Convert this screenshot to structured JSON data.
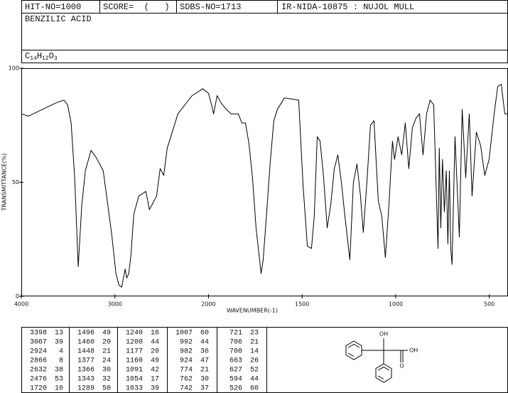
{
  "header": {
    "hit_no": "HIT-NO=1000",
    "score": "SCORE=  (   )",
    "sdbs_no": "SDBS-NO=1713",
    "method": "IR-NIDA-10875 : NUJOL MULL",
    "compound": "BENZILIC ACID",
    "formula": [
      "C",
      "14",
      "H",
      "12",
      "O",
      "3"
    ]
  },
  "chart_data": {
    "type": "line",
    "x_label": "WAVENUMBER(-1)",
    "y_label": "TRANSMITTANCE(%)",
    "color": "#000000",
    "xlim": [
      4000,
      400
    ],
    "x_break": 2000,
    "xticks": [
      4000,
      3000,
      2000,
      1500,
      1000,
      500
    ],
    "ylim": [
      0,
      100
    ],
    "yticks": [
      0,
      50,
      100
    ],
    "x": [
      4000,
      3924,
      3772,
      3620,
      3544,
      3506,
      3468,
      3430,
      3392,
      3354,
      3316,
      3255,
      3202,
      3125,
      3072,
      3034,
      2989,
      2958,
      2928,
      2890,
      2874,
      2852,
      2829,
      2798,
      2745,
      2669,
      2631,
      2555,
      2517,
      2479,
      2441,
      2327,
      2175,
      2061,
      2000,
      1981,
      1973,
      1954,
      1935,
      1905,
      1879,
      1841,
      1822,
      1803,
      1784,
      1765,
      1746,
      1719,
      1708,
      1689,
      1670,
      1651,
      1632,
      1594,
      1518,
      1495,
      1472,
      1450,
      1435,
      1419,
      1404,
      1385,
      1366,
      1347,
      1328,
      1309,
      1290,
      1271,
      1245,
      1226,
      1207,
      1188,
      1173,
      1154,
      1135,
      1116,
      1093,
      1074,
      1055,
      1036,
      1017,
      1006,
      987,
      968,
      949,
      930,
      911,
      892,
      873,
      854,
      835,
      816,
      797,
      774,
      767,
      759,
      750,
      740,
      730,
      721,
      713,
      706,
      699,
      683,
      660,
      645,
      626,
      607,
      592,
      569,
      546,
      524,
      501,
      474,
      455,
      436,
      417,
      400
    ],
    "values": [
      80,
      79,
      82,
      85,
      86,
      84,
      76,
      52,
      13,
      40,
      55,
      64,
      61,
      55,
      39,
      27,
      10,
      5,
      4,
      12,
      8,
      10,
      18,
      36,
      44,
      46,
      38,
      44,
      56,
      53,
      65,
      80,
      88,
      91,
      89,
      83,
      80,
      88,
      85,
      82,
      80,
      80,
      76,
      76,
      67,
      52,
      30,
      10,
      16,
      37,
      59,
      77,
      82,
      87,
      86,
      49,
      22,
      21,
      35,
      70,
      68,
      52,
      30,
      40,
      56,
      62,
      50,
      35,
      16,
      50,
      58,
      44,
      28,
      50,
      75,
      77,
      42,
      35,
      17,
      40,
      68,
      60,
      70,
      62,
      76,
      56,
      74,
      78,
      80,
      62,
      80,
      86,
      84,
      21,
      65,
      30,
      60,
      37,
      55,
      23,
      55,
      21,
      14,
      70,
      26,
      82,
      52,
      80,
      44,
      72,
      66,
      53,
      60,
      80,
      92,
      93,
      80,
      80
    ]
  },
  "peak_table": [
    [
      [
        3398,
        13
      ],
      [
        3067,
        39
      ],
      [
        2924,
        4
      ],
      [
        2866,
        8
      ],
      [
        2632,
        38
      ],
      [
        2476,
        53
      ],
      [
        1720,
        10
      ]
    ],
    [
      [
        1496,
        49
      ],
      [
        1460,
        20
      ],
      [
        1448,
        21
      ],
      [
        1377,
        24
      ],
      [
        1366,
        30
      ],
      [
        1343,
        32
      ],
      [
        1289,
        50
      ]
    ],
    [
      [
        1240,
        16
      ],
      [
        1200,
        44
      ],
      [
        1177,
        20
      ],
      [
        1160,
        49
      ],
      [
        1091,
        42
      ],
      [
        1054,
        17
      ],
      [
        1033,
        39
      ]
    ],
    [
      [
        1007,
        60
      ],
      [
        992,
        44
      ],
      [
        982,
        36
      ],
      [
        924,
        47
      ],
      [
        774,
        21
      ],
      [
        762,
        30
      ],
      [
        742,
        37
      ]
    ],
    [
      [
        721,
        23
      ],
      [
        706,
        21
      ],
      [
        700,
        14
      ],
      [
        663,
        26
      ],
      [
        627,
        52
      ],
      [
        594,
        44
      ],
      [
        526,
        60
      ]
    ]
  ],
  "structure": {
    "labels": [
      "OH",
      "OH",
      "O"
    ]
  }
}
